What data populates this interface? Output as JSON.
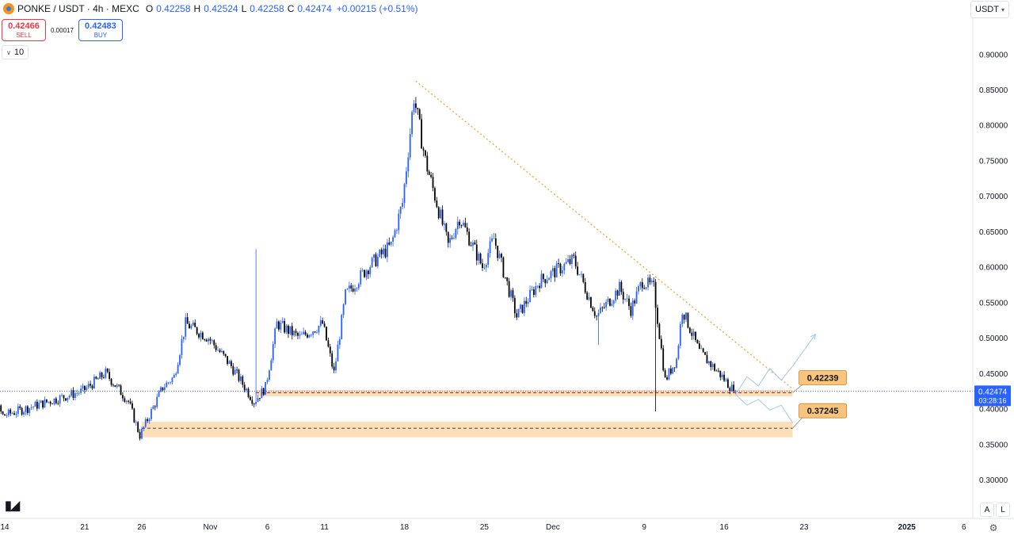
{
  "header": {
    "symbol": "PONKE / USDT · 4h · MEXC",
    "open_label": "O",
    "open": "0.42258",
    "high_label": "H",
    "high": "0.42524",
    "low_label": "L",
    "low": "0.42258",
    "close_label": "C",
    "close": "0.42474",
    "change": "+0.00215 (+0.51%)"
  },
  "trade": {
    "sell_price": "0.42466",
    "sell_label": "SELL",
    "spread": "0.00017",
    "buy_price": "0.42483",
    "buy_label": "BUY"
  },
  "volume_toggle": "10",
  "currency": "USDT",
  "corner_buttons": [
    "A",
    "L"
  ],
  "icons": [
    "logo-icon",
    "chevron-down-icon",
    "gear-icon",
    "tradingview-logo"
  ],
  "colors": {
    "up": "#2962ff",
    "down": "#000000",
    "zone": "#f9c47b",
    "trendline": "#f5a623",
    "support_line": "#b71c1c",
    "projection": "#9ec9f0"
  },
  "chart_data": {
    "type": "candlestick",
    "symbol": "PONKE / USDT",
    "timeframe": "4h",
    "exchange": "MEXC",
    "y_ticks": [
      "0.90000",
      "0.85000",
      "0.80000",
      "0.75000",
      "0.70000",
      "0.65000",
      "0.60000",
      "0.55000",
      "0.50000",
      "0.45000",
      "0.40000",
      "0.35000",
      "0.30000"
    ],
    "y_tick_values": [
      0.9,
      0.85,
      0.8,
      0.75,
      0.7,
      0.65,
      0.6,
      0.55,
      0.5,
      0.45,
      0.4,
      0.35,
      0.3
    ],
    "x_ticks": [
      {
        "label": "14",
        "date": "2024-10-14"
      },
      {
        "label": "21",
        "date": "2024-10-21"
      },
      {
        "label": "26",
        "date": "2024-10-26"
      },
      {
        "label": "Nov",
        "date": "2024-11-01"
      },
      {
        "label": "6",
        "date": "2024-11-06"
      },
      {
        "label": "11",
        "date": "2024-11-11"
      },
      {
        "label": "18",
        "date": "2024-11-18"
      },
      {
        "label": "25",
        "date": "2024-11-25"
      },
      {
        "label": "Dec",
        "date": "2024-12-01"
      },
      {
        "label": "9",
        "date": "2024-12-09"
      },
      {
        "label": "16",
        "date": "2024-12-16"
      },
      {
        "label": "23",
        "date": "2024-12-23"
      },
      {
        "label": "2025",
        "date": "2025-01-01"
      },
      {
        "label": "6",
        "date": "2025-01-06"
      }
    ],
    "last_price": "0.42474",
    "last_price_value": 0.42474,
    "countdown": "03:28:16",
    "anchors": [
      {
        "date": "2024-10-11",
        "price": 0.41
      },
      {
        "date": "2024-10-12",
        "price": 0.445
      },
      {
        "date": "2024-10-14",
        "price": 0.39
      },
      {
        "date": "2024-10-17",
        "price": 0.405
      },
      {
        "date": "2024-10-21",
        "price": 0.425
      },
      {
        "date": "2024-10-23",
        "price": 0.45
      },
      {
        "date": "2024-10-25",
        "price": 0.41
      },
      {
        "date": "2024-10-26",
        "price": 0.362
      },
      {
        "date": "2024-10-28",
        "price": 0.43
      },
      {
        "date": "2024-10-29",
        "price": 0.445
      },
      {
        "date": "2024-10-30",
        "price": 0.52
      },
      {
        "date": "2024-11-01",
        "price": 0.5
      },
      {
        "date": "2024-11-03",
        "price": 0.46
      },
      {
        "date": "2024-11-05",
        "price": 0.41
      },
      {
        "date": "2024-11-06",
        "price": 0.43
      },
      {
        "date": "2024-11-07",
        "price": 0.52
      },
      {
        "date": "2024-11-09",
        "price": 0.5
      },
      {
        "date": "2024-11-11",
        "price": 0.52
      },
      {
        "date": "2024-11-12",
        "price": 0.45
      },
      {
        "date": "2024-11-13",
        "price": 0.56
      },
      {
        "date": "2024-11-15",
        "price": 0.6
      },
      {
        "date": "2024-11-17",
        "price": 0.63
      },
      {
        "date": "2024-11-18",
        "price": 0.69
      },
      {
        "date": "2024-11-19",
        "price": 0.84
      },
      {
        "date": "2024-11-20",
        "price": 0.75
      },
      {
        "date": "2024-11-22",
        "price": 0.63
      },
      {
        "date": "2024-11-23",
        "price": 0.67
      },
      {
        "date": "2024-11-25",
        "price": 0.6
      },
      {
        "date": "2024-11-26",
        "price": 0.64
      },
      {
        "date": "2024-11-28",
        "price": 0.53
      },
      {
        "date": "2024-11-30",
        "price": 0.58
      },
      {
        "date": "2024-12-02",
        "price": 0.6
      },
      {
        "date": "2024-12-03",
        "price": 0.61
      },
      {
        "date": "2024-12-05",
        "price": 0.53
      },
      {
        "date": "2024-12-07",
        "price": 0.57
      },
      {
        "date": "2024-12-08",
        "price": 0.54
      },
      {
        "date": "2024-12-09",
        "price": 0.58
      },
      {
        "date": "2024-12-10",
        "price": 0.57
      },
      {
        "date": "2024-12-11",
        "price": 0.44
      },
      {
        "date": "2024-12-12",
        "price": 0.47
      },
      {
        "date": "2024-12-12T12:00",
        "price": 0.54
      },
      {
        "date": "2024-12-14",
        "price": 0.48
      },
      {
        "date": "2024-12-16",
        "price": 0.445
      },
      {
        "date": "2024-12-17",
        "price": 0.425
      }
    ],
    "spikes": [
      {
        "date": "2024-11-05",
        "high": 0.625
      },
      {
        "date": "2024-12-10",
        "low": 0.396
      },
      {
        "date": "2024-12-05",
        "low": 0.49
      },
      {
        "date": "2024-10-26",
        "low": 0.358
      }
    ],
    "zones": [
      {
        "name": "support-upper",
        "label": "0.42239",
        "level": 0.42239,
        "top": 0.4265,
        "bottom": 0.4175,
        "start": "2024-11-05",
        "end": "2024-12-22"
      },
      {
        "name": "support-lower",
        "label": "0.37245",
        "level": 0.37245,
        "top": 0.3815,
        "bottom": 0.3595,
        "start": "2024-10-26",
        "end": "2024-12-22"
      }
    ],
    "trendline": {
      "start": {
        "date": "2024-11-19",
        "price": 0.862
      },
      "end": {
        "date": "2024-12-22",
        "price": 0.428
      }
    },
    "projections": [
      {
        "points": [
          {
            "date": "2024-12-17",
            "price": 0.42
          },
          {
            "date": "2024-12-18",
            "price": 0.445
          },
          {
            "date": "2024-12-19",
            "price": 0.432
          },
          {
            "date": "2024-12-20",
            "price": 0.457
          },
          {
            "date": "2024-12-21",
            "price": 0.44
          },
          {
            "date": "2024-12-22",
            "price": 0.46
          },
          {
            "date": "2024-12-24",
            "price": 0.505
          }
        ]
      },
      {
        "points": [
          {
            "date": "2024-12-17",
            "price": 0.42
          },
          {
            "date": "2024-12-18",
            "price": 0.405
          },
          {
            "date": "2024-12-19",
            "price": 0.413
          },
          {
            "date": "2024-12-20",
            "price": 0.398
          },
          {
            "date": "2024-12-21",
            "price": 0.405
          },
          {
            "date": "2024-12-22",
            "price": 0.38
          }
        ]
      }
    ]
  }
}
